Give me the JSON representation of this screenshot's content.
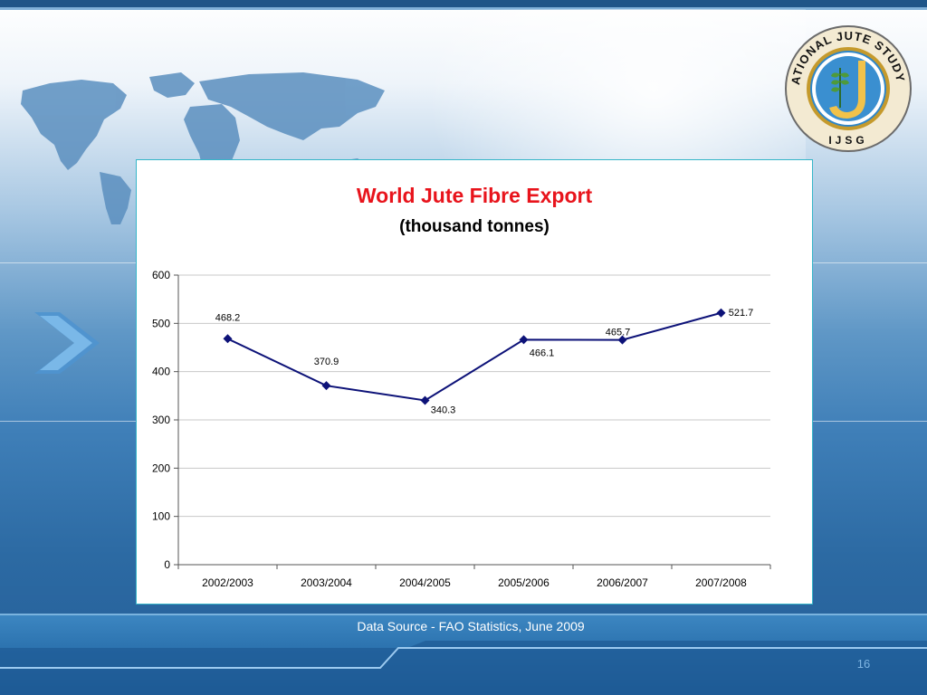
{
  "slide": {
    "source_note": "Data Source - FAO Statistics, June 2009",
    "page_number": "16",
    "logo_text_top": "INTERNATIONAL JUTE STUDY GROUP",
    "logo_text_bottom": "IJSG",
    "colors": {
      "title_red": "#e8141c",
      "series_navy": "#0d1278",
      "panel_border": "#36b6c8"
    }
  },
  "chart_data": {
    "type": "line",
    "title": "World Jute Fibre Export",
    "subtitle": "(thousand tonnes)",
    "categories": [
      "2002/2003",
      "2003/2004",
      "2004/2005",
      "2005/2006",
      "2006/2007",
      "2007/2008"
    ],
    "values": [
      468.2,
      370.9,
      340.3,
      466.1,
      465.7,
      521.7
    ],
    "data_labels": [
      "468.2",
      "370.9",
      "340.3",
      "466.1",
      "465.7",
      "521.7"
    ],
    "ylim": [
      0,
      600
    ],
    "yticks": [
      0,
      100,
      200,
      300,
      400,
      500,
      600
    ],
    "grid": true,
    "legend": "none",
    "marker": "diamond"
  }
}
